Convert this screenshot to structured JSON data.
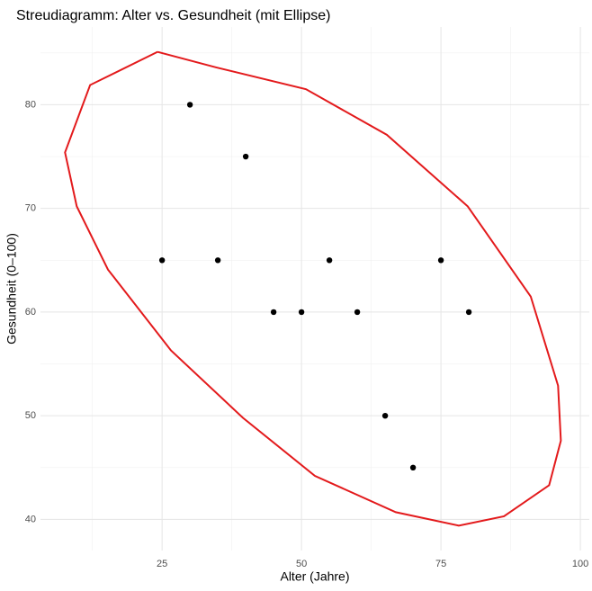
{
  "chart_data": {
    "type": "scatter",
    "title": "Streudiagramm: Alter vs. Gesundheit (mit Ellipse)",
    "x_label": "Alter (Jahre)",
    "y_label": "Gesundheit (0–100)",
    "xlim": [
      3.2,
      101.6
    ],
    "ylim": [
      37.0,
      87.5
    ],
    "xticks": [
      25,
      50,
      75,
      100
    ],
    "yticks": [
      40,
      50,
      60,
      70,
      80
    ],
    "xminor": [
      12.5,
      37.5,
      62.5,
      87.5
    ],
    "yminor": [
      45,
      55,
      65,
      75,
      85
    ],
    "grid": true,
    "points": {
      "color": "#000000",
      "x": [
        25,
        30,
        35,
        40,
        45,
        50,
        55,
        60,
        65,
        70,
        75,
        80
      ],
      "y": [
        65,
        80,
        65,
        75,
        60,
        60,
        65,
        60,
        50,
        45,
        65,
        60
      ]
    },
    "ellipse": {
      "color": "#e31a1c",
      "x": [
        24.2,
        34.7,
        50.8,
        65.3,
        79.8,
        91.1,
        96.0,
        96.5,
        94.4,
        86.3,
        78.2,
        66.9,
        52.4,
        39.5,
        26.6,
        15.3,
        9.7,
        7.6,
        12.1,
        24.2
      ],
      "y": [
        85.1,
        83.6,
        81.5,
        77.1,
        70.2,
        61.5,
        52.9,
        47.6,
        43.3,
        40.3,
        39.4,
        40.7,
        44.2,
        49.8,
        56.3,
        64.1,
        70.2,
        75.4,
        81.9,
        85.1
      ]
    }
  }
}
